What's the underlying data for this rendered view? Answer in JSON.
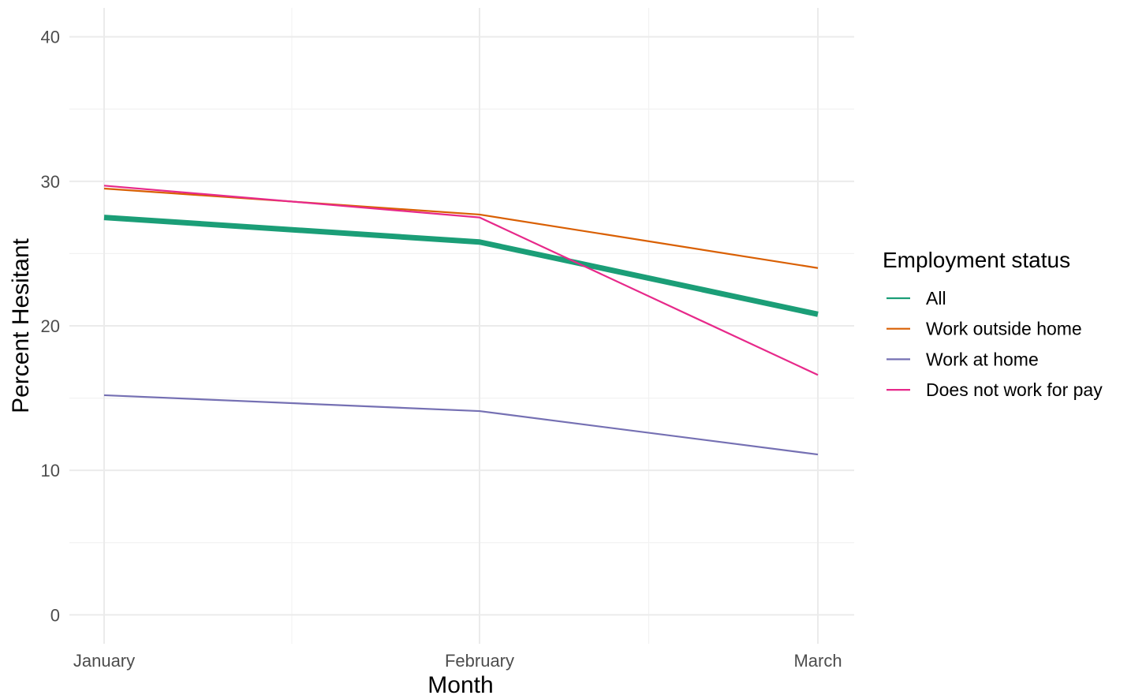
{
  "chart_data": {
    "type": "line",
    "title": "",
    "xlabel": "Month",
    "ylabel": "Percent Hesitant",
    "categories": [
      "January",
      "February",
      "March"
    ],
    "ylim": [
      -2,
      42
    ],
    "y_ticks": [
      0,
      10,
      20,
      30,
      40
    ],
    "y_tick_labels": [
      "0",
      "10",
      "20",
      "30",
      "40"
    ],
    "grid": true,
    "legend": {
      "title": "Employment status",
      "position": "right"
    },
    "series": [
      {
        "name": "All",
        "values": [
          27.5,
          25.8,
          20.8
        ],
        "color": "#1b9e77",
        "emphasis": true
      },
      {
        "name": "Work outside home",
        "values": [
          29.5,
          27.7,
          24.0
        ],
        "color": "#d95f02"
      },
      {
        "name": "Work at home",
        "values": [
          15.2,
          14.1,
          11.1
        ],
        "color": "#7570b3"
      },
      {
        "name": "Does not work for pay",
        "values": [
          29.7,
          27.5,
          16.6
        ],
        "color": "#e7298a"
      }
    ]
  }
}
